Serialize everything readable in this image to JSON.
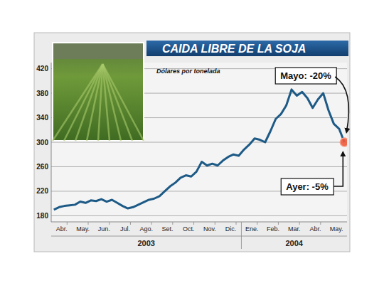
{
  "chart_data": {
    "type": "line",
    "title": "CAIDA LIBRE DE LA SOJA",
    "subtitle": "Dólares por tonelada",
    "categories": [
      null,
      "Abr.",
      null,
      null,
      null,
      "May.",
      null,
      null,
      null,
      "Jun.",
      null,
      null,
      null,
      "Jul.",
      null,
      null,
      null,
      "Ago.",
      null,
      null,
      null,
      "Set.",
      null,
      null,
      null,
      "Oct.",
      null,
      null,
      null,
      "Nov.",
      null,
      null,
      null,
      "Dic.",
      null,
      null,
      null,
      "Ene.",
      null,
      null,
      null,
      "Feb.",
      null,
      null,
      null,
      "Mar.",
      null,
      null,
      null,
      "Abr.",
      null,
      null,
      null,
      "May.",
      null,
      null
    ],
    "x_groups": [
      {
        "label": "2003",
        "count": 36
      },
      {
        "label": "2004",
        "count": 20
      }
    ],
    "series": [
      {
        "color": "#1d5a86",
        "marker": "end-dot",
        "values": [
          190,
          194,
          196,
          197,
          198,
          203,
          201,
          205,
          204,
          207,
          203,
          206,
          201,
          196,
          192,
          194,
          198,
          202,
          206,
          208,
          212,
          220,
          228,
          234,
          242,
          246,
          244,
          252,
          268,
          262,
          265,
          262,
          270,
          276,
          280,
          278,
          288,
          296,
          306,
          304,
          300,
          318,
          338,
          346,
          360,
          386,
          376,
          382,
          372,
          356,
          370,
          380,
          352,
          330,
          322,
          300
        ]
      }
    ],
    "ylim": [
      170,
      430
    ],
    "yticks": [
      180,
      220,
      260,
      300,
      340,
      380,
      420
    ],
    "grid": true,
    "annotations": [
      {
        "text": "Mayo: -20%"
      },
      {
        "text": "Ayer: -5%"
      }
    ]
  }
}
